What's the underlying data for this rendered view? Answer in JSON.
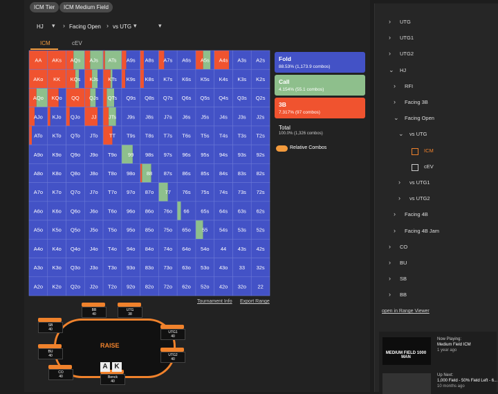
{
  "filters": [
    "ICM Tier",
    "ICM Medium Field"
  ],
  "selectors": [
    "HJ",
    "Facing Open",
    "vs UTG"
  ],
  "tabs": [
    "ICM",
    "cEV"
  ],
  "grid": {
    "hands": [
      [
        "AA",
        "AKs",
        "AQs",
        "AJs",
        "ATs",
        "A9s",
        "A8s",
        "A7s",
        "A6s",
        "A5s",
        "A4s",
        "A3s",
        "A2s"
      ],
      [
        "AKo",
        "KK",
        "KQs",
        "KJs",
        "KTs",
        "K9s",
        "K8s",
        "K7s",
        "K6s",
        "K5s",
        "K4s",
        "K3s",
        "K2s"
      ],
      [
        "AQo",
        "KQo",
        "QQ",
        "QJs",
        "QTs",
        "Q9s",
        "Q8s",
        "Q7s",
        "Q6s",
        "Q5s",
        "Q4s",
        "Q3s",
        "Q2s"
      ],
      [
        "AJo",
        "KJo",
        "QJo",
        "JJ",
        "JTs",
        "J9s",
        "J8s",
        "J7s",
        "J6s",
        "J5s",
        "J4s",
        "J3s",
        "J2s"
      ],
      [
        "ATo",
        "KTo",
        "QTo",
        "JTo",
        "TT",
        "T9s",
        "T8s",
        "T7s",
        "T6s",
        "T5s",
        "T4s",
        "T3s",
        "T2s"
      ],
      [
        "A9o",
        "K9o",
        "Q9o",
        "J9o",
        "T9o",
        "99",
        "98s",
        "97s",
        "96s",
        "95s",
        "94s",
        "93s",
        "92s"
      ],
      [
        "A8o",
        "K8o",
        "Q8o",
        "J8o",
        "T8o",
        "98o",
        "88",
        "87s",
        "86s",
        "85s",
        "84s",
        "83s",
        "82s"
      ],
      [
        "A7o",
        "K7o",
        "Q7o",
        "J7o",
        "T7o",
        "97o",
        "87o",
        "77",
        "76s",
        "75s",
        "74s",
        "73s",
        "72s"
      ],
      [
        "A6o",
        "K6o",
        "Q6o",
        "J6o",
        "T6o",
        "96o",
        "86o",
        "76o",
        "66",
        "65s",
        "64s",
        "63s",
        "62s"
      ],
      [
        "A5o",
        "K5o",
        "Q5o",
        "J5o",
        "T5o",
        "95o",
        "85o",
        "75o",
        "65o",
        "55",
        "54s",
        "53s",
        "52s"
      ],
      [
        "A4o",
        "K4o",
        "Q4o",
        "J4o",
        "T4o",
        "94o",
        "84o",
        "74o",
        "64o",
        "54o",
        "44",
        "43s",
        "42s"
      ],
      [
        "A3o",
        "K3o",
        "Q3o",
        "J3o",
        "T3o",
        "93o",
        "83o",
        "73o",
        "63o",
        "53o",
        "43o",
        "33",
        "32s"
      ],
      [
        "A2o",
        "K2o",
        "Q2o",
        "J2o",
        "T2o",
        "92o",
        "82o",
        "72o",
        "62o",
        "52o",
        "42o",
        "32o",
        "22"
      ]
    ],
    "mix": [
      [
        [
          0,
          0,
          100
        ],
        [
          0,
          0,
          100
        ],
        [
          0,
          60,
          40
        ],
        [
          0,
          70,
          30
        ],
        [
          0,
          90,
          10
        ],
        [
          75,
          0,
          25
        ],
        [
          80,
          0,
          20
        ],
        [
          70,
          0,
          30
        ],
        [
          100,
          0,
          0
        ],
        [
          20,
          40,
          40
        ],
        [
          20,
          0,
          80
        ],
        [
          100,
          0,
          0
        ],
        [
          100,
          0,
          0
        ]
      ],
      [
        [
          0,
          0,
          100
        ],
        [
          0,
          0,
          100
        ],
        [
          30,
          20,
          50
        ],
        [
          30,
          30,
          40
        ],
        [
          50,
          10,
          40
        ],
        [
          80,
          0,
          20
        ],
        [
          80,
          0,
          20
        ],
        [
          100,
          0,
          0
        ],
        [
          100,
          0,
          0
        ],
        [
          100,
          0,
          0
        ],
        [
          100,
          0,
          0
        ],
        [
          100,
          0,
          0
        ],
        [
          100,
          0,
          0
        ]
      ],
      [
        [
          0,
          60,
          40
        ],
        [
          40,
          0,
          60
        ],
        [
          0,
          0,
          100
        ],
        [
          40,
          30,
          30
        ],
        [
          40,
          40,
          20
        ],
        [
          100,
          0,
          0
        ],
        [
          100,
          0,
          0
        ],
        [
          100,
          0,
          0
        ],
        [
          100,
          0,
          0
        ],
        [
          100,
          0,
          0
        ],
        [
          100,
          0,
          0
        ],
        [
          100,
          0,
          0
        ],
        [
          100,
          0,
          0
        ]
      ],
      [
        [
          70,
          0,
          30
        ],
        [
          85,
          0,
          15
        ],
        [
          80,
          0,
          20
        ],
        [
          30,
          0,
          70
        ],
        [
          30,
          40,
          30
        ],
        [
          100,
          0,
          0
        ],
        [
          100,
          0,
          0
        ],
        [
          100,
          0,
          0
        ],
        [
          100,
          0,
          0
        ],
        [
          100,
          0,
          0
        ],
        [
          100,
          0,
          0
        ],
        [
          100,
          0,
          0
        ],
        [
          100,
          0,
          0
        ]
      ],
      [
        [
          85,
          0,
          15
        ],
        [
          100,
          0,
          0
        ],
        [
          100,
          0,
          0
        ],
        [
          100,
          0,
          0
        ],
        [
          50,
          0,
          50
        ],
        [
          100,
          0,
          0
        ],
        [
          100,
          0,
          0
        ],
        [
          100,
          0,
          0
        ],
        [
          100,
          0,
          0
        ],
        [
          100,
          0,
          0
        ],
        [
          100,
          0,
          0
        ],
        [
          100,
          0,
          0
        ],
        [
          100,
          0,
          0
        ]
      ],
      [
        [
          100,
          0,
          0
        ],
        [
          100,
          0,
          0
        ],
        [
          100,
          0,
          0
        ],
        [
          100,
          0,
          0
        ],
        [
          100,
          0,
          0
        ],
        [
          40,
          60,
          0
        ],
        [
          100,
          0,
          0
        ],
        [
          100,
          0,
          0
        ],
        [
          100,
          0,
          0
        ],
        [
          100,
          0,
          0
        ],
        [
          100,
          0,
          0
        ],
        [
          100,
          0,
          0
        ],
        [
          100,
          0,
          0
        ]
      ],
      [
        [
          100,
          0,
          0
        ],
        [
          100,
          0,
          0
        ],
        [
          100,
          0,
          0
        ],
        [
          100,
          0,
          0
        ],
        [
          100,
          0,
          0
        ],
        [
          100,
          0,
          0
        ],
        [
          40,
          50,
          10
        ],
        [
          100,
          0,
          0
        ],
        [
          100,
          0,
          0
        ],
        [
          100,
          0,
          0
        ],
        [
          100,
          0,
          0
        ],
        [
          100,
          0,
          0
        ],
        [
          100,
          0,
          0
        ]
      ],
      [
        [
          100,
          0,
          0
        ],
        [
          100,
          0,
          0
        ],
        [
          100,
          0,
          0
        ],
        [
          100,
          0,
          0
        ],
        [
          100,
          0,
          0
        ],
        [
          100,
          0,
          0
        ],
        [
          100,
          0,
          0
        ],
        [
          50,
          50,
          0
        ],
        [
          100,
          0,
          0
        ],
        [
          100,
          0,
          0
        ],
        [
          100,
          0,
          0
        ],
        [
          100,
          0,
          0
        ],
        [
          100,
          0,
          0
        ]
      ],
      [
        [
          100,
          0,
          0
        ],
        [
          100,
          0,
          0
        ],
        [
          100,
          0,
          0
        ],
        [
          100,
          0,
          0
        ],
        [
          100,
          0,
          0
        ],
        [
          100,
          0,
          0
        ],
        [
          100,
          0,
          0
        ],
        [
          100,
          0,
          0
        ],
        [
          80,
          20,
          0
        ],
        [
          100,
          0,
          0
        ],
        [
          100,
          0,
          0
        ],
        [
          100,
          0,
          0
        ],
        [
          100,
          0,
          0
        ]
      ],
      [
        [
          100,
          0,
          0
        ],
        [
          100,
          0,
          0
        ],
        [
          100,
          0,
          0
        ],
        [
          100,
          0,
          0
        ],
        [
          100,
          0,
          0
        ],
        [
          100,
          0,
          0
        ],
        [
          100,
          0,
          0
        ],
        [
          100,
          0,
          0
        ],
        [
          100,
          0,
          0
        ],
        [
          60,
          40,
          0
        ],
        [
          100,
          0,
          0
        ],
        [
          100,
          0,
          0
        ],
        [
          100,
          0,
          0
        ]
      ],
      [
        [
          100,
          0,
          0
        ],
        [
          100,
          0,
          0
        ],
        [
          100,
          0,
          0
        ],
        [
          100,
          0,
          0
        ],
        [
          100,
          0,
          0
        ],
        [
          100,
          0,
          0
        ],
        [
          100,
          0,
          0
        ],
        [
          100,
          0,
          0
        ],
        [
          100,
          0,
          0
        ],
        [
          100,
          0,
          0
        ],
        [
          100,
          0,
          0
        ],
        [
          100,
          0,
          0
        ],
        [
          100,
          0,
          0
        ]
      ],
      [
        [
          100,
          0,
          0
        ],
        [
          100,
          0,
          0
        ],
        [
          100,
          0,
          0
        ],
        [
          100,
          0,
          0
        ],
        [
          100,
          0,
          0
        ],
        [
          100,
          0,
          0
        ],
        [
          100,
          0,
          0
        ],
        [
          100,
          0,
          0
        ],
        [
          100,
          0,
          0
        ],
        [
          100,
          0,
          0
        ],
        [
          100,
          0,
          0
        ],
        [
          100,
          0,
          0
        ],
        [
          100,
          0,
          0
        ]
      ],
      [
        [
          100,
          0,
          0
        ],
        [
          100,
          0,
          0
        ],
        [
          100,
          0,
          0
        ],
        [
          100,
          0,
          0
        ],
        [
          100,
          0,
          0
        ],
        [
          100,
          0,
          0
        ],
        [
          100,
          0,
          0
        ],
        [
          100,
          0,
          0
        ],
        [
          100,
          0,
          0
        ],
        [
          100,
          0,
          0
        ],
        [
          100,
          0,
          0
        ],
        [
          100,
          0,
          0
        ],
        [
          100,
          0,
          0
        ]
      ]
    ]
  },
  "legend": [
    {
      "name": "Fold",
      "detail": "88.53% (1,173.9 combos)",
      "color": "#4352c6"
    },
    {
      "name": "Call",
      "detail": "4.154% (55.1 combos)",
      "color": "#8ebf8c"
    },
    {
      "name": "3B",
      "detail": "7.317% (97 combos)",
      "color": "#f0532f"
    }
  ],
  "total": {
    "label": "Total",
    "detail": "100.0% (1,326 combos)"
  },
  "toggle": "Relative Combos",
  "links": [
    "Tournament Info",
    "Export Range"
  ],
  "table": {
    "logo": "RAISE",
    "hero_cards": [
      "A",
      "K"
    ],
    "seats": [
      {
        "name": "BB",
        "stack": "40"
      },
      {
        "name": "UTG",
        "stack": "38"
      },
      {
        "name": "SB",
        "stack": "40"
      },
      {
        "name": "UTG1",
        "stack": "40"
      },
      {
        "name": "BU",
        "stack": "40"
      },
      {
        "name": "UTG2",
        "stack": "40"
      },
      {
        "name": "CO",
        "stack": "40"
      },
      {
        "name": "Benck",
        "stack": "40"
      }
    ]
  },
  "sidebar": {
    "tree": [
      {
        "label": "UTG"
      },
      {
        "label": "UTG1"
      },
      {
        "label": "UTG2"
      },
      {
        "label": "HJ",
        "children": [
          {
            "label": "RFI"
          },
          {
            "label": "Facing 3B"
          },
          {
            "label": "Facing Open",
            "children": [
              {
                "label": "vs UTG",
                "children": [
                  {
                    "label": "ICM"
                  },
                  {
                    "label": "cEV"
                  }
                ]
              },
              {
                "label": "vs UTG1"
              },
              {
                "label": "vs UTG2"
              }
            ]
          },
          {
            "label": "Facing 4B"
          },
          {
            "label": "Facing 4B Jam"
          }
        ]
      },
      {
        "label": "CO"
      },
      {
        "label": "BU"
      },
      {
        "label": "SB"
      },
      {
        "label": "BB"
      }
    ],
    "link": "open in Range Viewer"
  },
  "videos": {
    "now": {
      "label": "Now Playing:",
      "title": "Medium Field ICM",
      "age": "1 year ago",
      "thumb": "MEDIUM FIELD 1000 MAN"
    },
    "next": {
      "label": "Up Next:",
      "title": "1,000 Field - 50% Field Left - 6...",
      "age": "10 months ago"
    }
  }
}
